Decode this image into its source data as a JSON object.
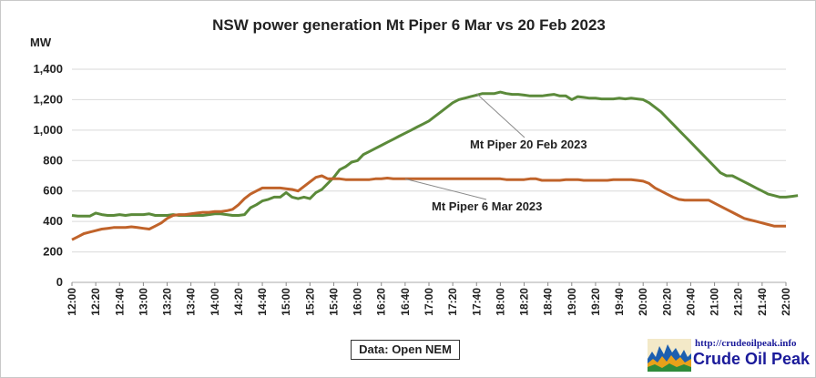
{
  "chart_data": {
    "type": "line",
    "title": "NSW power generation Mt Piper 6 Mar vs 20 Feb 2023",
    "ylabel": "MW",
    "ylim": [
      0,
      1400
    ],
    "yticks": [
      "0",
      "200",
      "400",
      "600",
      "800",
      "1,000",
      "1,200",
      "1,400"
    ],
    "ytick_values": [
      0,
      200,
      400,
      600,
      800,
      1000,
      1200,
      1400
    ],
    "x_tick_labels": [
      "12:00",
      "12:20",
      "12:40",
      "13:00",
      "13:20",
      "13:40",
      "14:00",
      "14:20",
      "14:40",
      "15:00",
      "15:20",
      "15:40",
      "16:00",
      "16:20",
      "16:40",
      "17:00",
      "17:20",
      "17:40",
      "18:00",
      "18:20",
      "18:40",
      "19:00",
      "19:20",
      "19:40",
      "20:00",
      "20:20",
      "20:40",
      "21:00",
      "21:20",
      "21:40",
      "22:00"
    ],
    "x_start": "12:00",
    "x_end": "22:00",
    "interval_minutes": 5,
    "grid": "horizontal",
    "series": [
      {
        "name": "Mt Piper 20 Feb 2023",
        "color": "#5b8a3a",
        "values": [
          440,
          435,
          435,
          435,
          455,
          445,
          440,
          440,
          445,
          440,
          445,
          445,
          445,
          450,
          440,
          440,
          440,
          445,
          440,
          440,
          440,
          440,
          440,
          445,
          450,
          450,
          445,
          440,
          440,
          445,
          490,
          510,
          535,
          545,
          560,
          560,
          590,
          560,
          550,
          560,
          550,
          590,
          610,
          650,
          690,
          740,
          760,
          790,
          800,
          840,
          860,
          880,
          900,
          920,
          940,
          960,
          980,
          1000,
          1020,
          1040,
          1060,
          1090,
          1120,
          1150,
          1180,
          1200,
          1210,
          1220,
          1230,
          1240,
          1240,
          1240,
          1250,
          1240,
          1235,
          1235,
          1230,
          1225,
          1225,
          1225,
          1230,
          1235,
          1225,
          1225,
          1200,
          1220,
          1215,
          1210,
          1210,
          1205,
          1205,
          1205,
          1210,
          1205,
          1210,
          1205,
          1200,
          1180,
          1150,
          1120,
          1080,
          1040,
          1000,
          960,
          920,
          880,
          840,
          800,
          760,
          720,
          700,
          700,
          680,
          660,
          640,
          620,
          600,
          580,
          570,
          560,
          560,
          565,
          570
        ]
      },
      {
        "name": "Mt Piper 6 Mar 2023",
        "color": "#c0632a",
        "values": [
          280,
          300,
          320,
          330,
          340,
          350,
          355,
          360,
          360,
          360,
          365,
          360,
          355,
          350,
          370,
          390,
          420,
          440,
          445,
          445,
          450,
          455,
          460,
          460,
          465,
          465,
          470,
          480,
          510,
          550,
          580,
          600,
          620,
          620,
          620,
          620,
          615,
          610,
          600,
          630,
          660,
          690,
          700,
          680,
          680,
          680,
          675,
          675,
          675,
          675,
          675,
          680,
          680,
          685,
          680,
          680,
          680,
          680,
          680,
          680,
          680,
          680,
          680,
          680,
          680,
          680,
          680,
          680,
          680,
          680,
          680,
          680,
          680,
          675,
          675,
          675,
          675,
          680,
          680,
          670,
          670,
          670,
          670,
          675,
          675,
          675,
          670,
          670,
          670,
          670,
          670,
          675,
          675,
          675,
          675,
          670,
          665,
          650,
          620,
          600,
          580,
          560,
          545,
          540,
          540,
          540,
          540,
          540,
          520,
          500,
          480,
          460,
          440,
          420,
          410,
          400,
          390,
          380,
          370,
          370,
          370
        ]
      }
    ],
    "annotations": [
      {
        "text": "Mt Piper 20 Feb 2023",
        "series_index": 0,
        "point_time": "17:40",
        "point_value": 1240
      },
      {
        "text": "Mt Piper 6 Mar 2023",
        "series_index": 1,
        "point_time": "16:40",
        "point_value": 680
      }
    ],
    "source_note": "Data: Open NEM"
  },
  "logo": {
    "url_text": "http://crudeoilpeak.info",
    "name": "Crude Oil Peak"
  }
}
